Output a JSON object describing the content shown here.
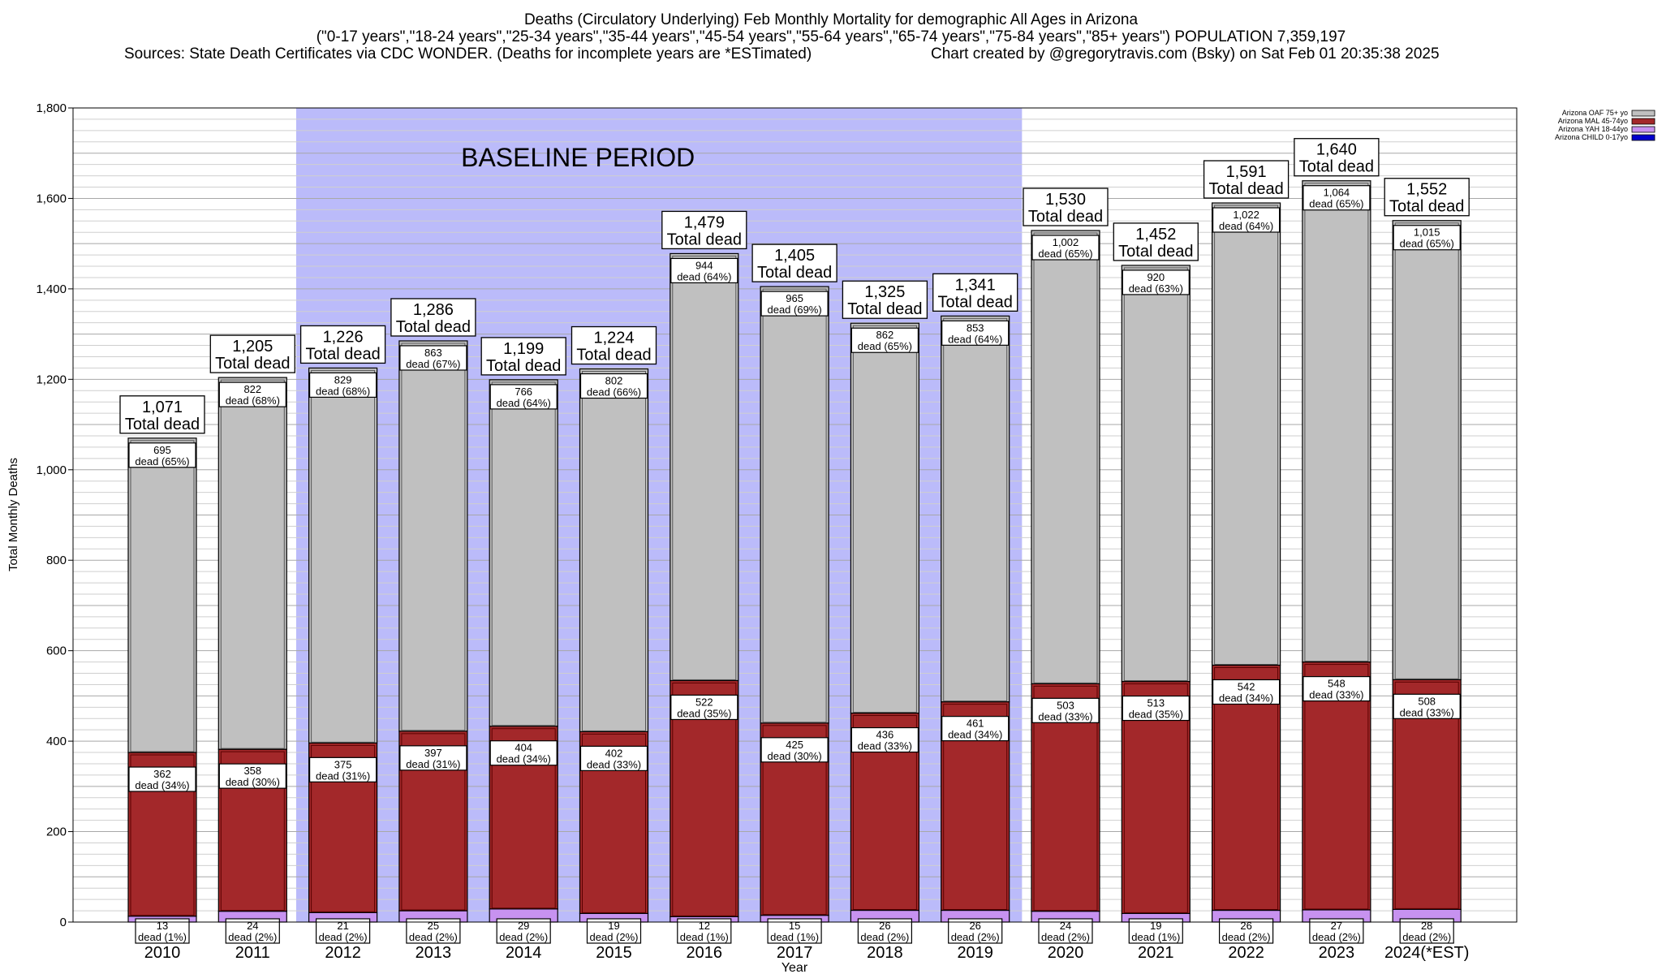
{
  "header": {
    "line1": "Deaths (Circulatory Underlying) Feb Monthly Mortality for demographic All Ages in Arizona",
    "line2": "(\"0-17 years\",\"18-24 years\",\"25-34 years\",\"35-44 years\",\"45-54 years\",\"55-64 years\",\"65-74 years\",\"75-84 years\",\"85+ years\") POPULATION 7,359,197",
    "line3_left": "Sources: State Death Certificates via CDC WONDER. (Deaths for incomplete years are *ESTimated)",
    "line3_right": "Chart created by @gregorytravis.com (Bsky) on Sat Feb 01 20:35:38 2025"
  },
  "chart_data": {
    "type": "bar",
    "stacked": true,
    "xlabel": "Year",
    "ylabel": "Total Monthly Deaths",
    "ylim": [
      0,
      1800
    ],
    "yticks": [
      "0",
      "200",
      "400",
      "600",
      "800",
      "1,000",
      "1,200",
      "1,400",
      "1,600",
      "1,800"
    ],
    "grid": true,
    "legend_position": "top-right",
    "categories": [
      "2010",
      "2011",
      "2012",
      "2013",
      "2014",
      "2015",
      "2016",
      "2017",
      "2018",
      "2019",
      "2020",
      "2021",
      "2022",
      "2023",
      "2024(*EST)"
    ],
    "baseline": {
      "label": "BASELINE PERIOD",
      "start": "2012",
      "end": "2019",
      "color": "#bbbbfa"
    },
    "total_label": "Total dead",
    "totals": [
      "1,071",
      "1,205",
      "1,226",
      "1,286",
      "1,199",
      "1,224",
      "1,479",
      "1,405",
      "1,325",
      "1,341",
      "1,530",
      "1,452",
      "1,591",
      "1,640",
      "1,552"
    ],
    "series": [
      {
        "name": "Arizona CHILD 0-17yo",
        "color": "#0000cc",
        "values": [
          0,
          0,
          0,
          0,
          0,
          0,
          0,
          0,
          0,
          0,
          0,
          0,
          0,
          0,
          0
        ]
      },
      {
        "name": "Arizona YAH 18-44yo",
        "color": "#c792f0",
        "values": [
          13,
          24,
          21,
          25,
          29,
          19,
          12,
          15,
          26,
          26,
          24,
          19,
          26,
          27,
          28
        ],
        "labels": [
          "13",
          "24",
          "21",
          "25",
          "29",
          "19",
          "12",
          "15",
          "26",
          "26",
          "24",
          "19",
          "26",
          "27",
          "28"
        ],
        "pct": [
          "dead (1%)",
          "dead (2%)",
          "dead (2%)",
          "dead (2%)",
          "dead (2%)",
          "dead (2%)",
          "dead (1%)",
          "dead (1%)",
          "dead (2%)",
          "dead (2%)",
          "dead (2%)",
          "dead (1%)",
          "dead (2%)",
          "dead (2%)",
          "dead (2%)"
        ]
      },
      {
        "name": "Arizona MAL 45-74yo",
        "color": "#a3282a",
        "values": [
          362,
          358,
          375,
          397,
          404,
          402,
          522,
          425,
          436,
          461,
          503,
          513,
          542,
          548,
          508
        ],
        "labels": [
          "362",
          "358",
          "375",
          "397",
          "404",
          "402",
          "522",
          "425",
          "436",
          "461",
          "503",
          "513",
          "542",
          "548",
          "508"
        ],
        "pct": [
          "dead (34%)",
          "dead (30%)",
          "dead (31%)",
          "dead (31%)",
          "dead (34%)",
          "dead (33%)",
          "dead (35%)",
          "dead (30%)",
          "dead (33%)",
          "dead (34%)",
          "dead (33%)",
          "dead (35%)",
          "dead (34%)",
          "dead (33%)",
          "dead (33%)"
        ]
      },
      {
        "name": "Arizona OAF 75+ yo",
        "color": "#c0c0c0",
        "values": [
          695,
          822,
          829,
          863,
          766,
          802,
          944,
          965,
          862,
          853,
          1002,
          920,
          1022,
          1064,
          1015
        ],
        "labels": [
          "695",
          "822",
          "829",
          "863",
          "766",
          "802",
          "944",
          "965",
          "862",
          "853",
          "1,002",
          "920",
          "1,022",
          "1,064",
          "1,015"
        ],
        "pct": [
          "dead (65%)",
          "dead (68%)",
          "dead (68%)",
          "dead (67%)",
          "dead (64%)",
          "dead (66%)",
          "dead (64%)",
          "dead (69%)",
          "dead (65%)",
          "dead (64%)",
          "dead (65%)",
          "dead (63%)",
          "dead (64%)",
          "dead (65%)",
          "dead (65%)"
        ]
      }
    ]
  }
}
